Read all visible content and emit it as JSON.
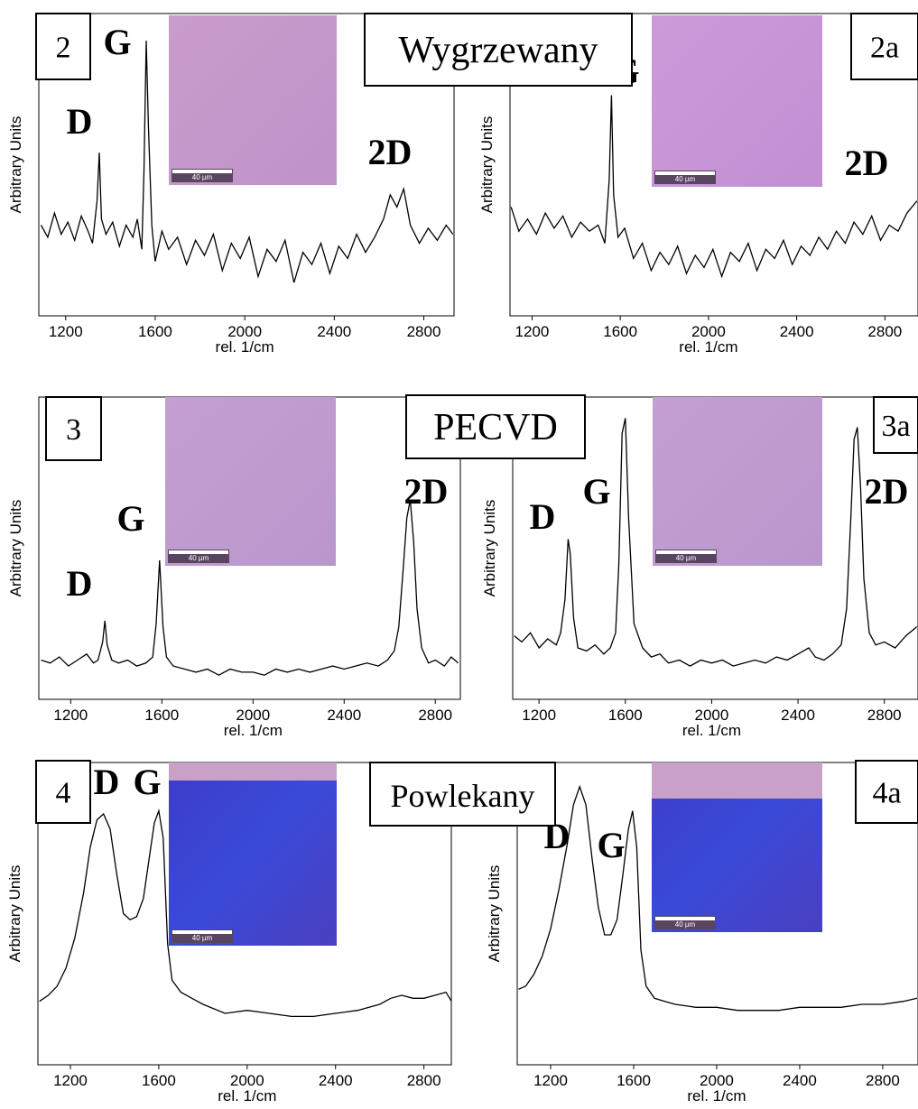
{
  "row_titles": [
    "Wygrzewany",
    "PECVD",
    "Powlekany"
  ],
  "chart_data": [
    {
      "type": "line",
      "panel_label": "2",
      "xlabel": "rel. 1/cm",
      "ylabel": "Arbitrary Units",
      "color": "#000000",
      "xlim": [
        1080,
        2935
      ],
      "ylim": [
        0,
        100
      ],
      "xticks": [
        1200,
        1600,
        2000,
        2400,
        2800
      ],
      "annotations": [
        "D",
        "G",
        "2D"
      ],
      "scale_bar": "40 µm",
      "x": [
        1090,
        1120,
        1150,
        1180,
        1210,
        1240,
        1270,
        1300,
        1320,
        1340,
        1350,
        1360,
        1380,
        1410,
        1440,
        1470,
        1500,
        1520,
        1540,
        1550,
        1560,
        1570,
        1585,
        1600,
        1630,
        1660,
        1700,
        1740,
        1780,
        1820,
        1860,
        1900,
        1940,
        1980,
        2020,
        2060,
        2100,
        2140,
        2180,
        2220,
        2260,
        2300,
        2340,
        2380,
        2420,
        2460,
        2500,
        2540,
        2580,
        2620,
        2650,
        2680,
        2710,
        2740,
        2780,
        2820,
        2860,
        2900,
        2930
      ],
      "values": [
        30,
        26,
        34,
        27,
        31,
        25,
        33,
        28,
        24,
        38,
        54,
        32,
        27,
        31,
        23,
        30,
        26,
        32,
        22,
        48,
        91,
        62,
        30,
        18,
        28,
        22,
        26,
        17,
        25,
        20,
        27,
        15,
        24,
        19,
        26,
        13,
        22,
        18,
        25,
        11,
        21,
        17,
        24,
        14,
        23,
        19,
        27,
        21,
        26,
        32,
        40,
        36,
        42,
        30,
        24,
        29,
        25,
        30,
        27
      ]
    },
    {
      "type": "line",
      "panel_label": "2a",
      "xlabel": "rel. 1/cm",
      "ylabel": "Arbitrary Units",
      "color": "#000000",
      "xlim": [
        1100,
        2950
      ],
      "ylim": [
        0,
        100
      ],
      "xticks": [
        1200,
        1600,
        2000,
        2400,
        2800
      ],
      "annotations": [
        "G",
        "2D"
      ],
      "scale_bar": "40 µm",
      "x": [
        1105,
        1140,
        1180,
        1220,
        1260,
        1300,
        1340,
        1380,
        1420,
        1460,
        1500,
        1530,
        1550,
        1560,
        1570,
        1590,
        1620,
        1660,
        1700,
        1740,
        1780,
        1820,
        1860,
        1900,
        1940,
        1980,
        2020,
        2060,
        2100,
        2140,
        2180,
        2220,
        2260,
        2300,
        2340,
        2380,
        2420,
        2460,
        2500,
        2540,
        2580,
        2620,
        2660,
        2700,
        2740,
        2780,
        2820,
        2860,
        2900,
        2945
      ],
      "values": [
        36,
        28,
        32,
        27,
        34,
        29,
        33,
        26,
        31,
        28,
        30,
        24,
        45,
        73,
        40,
        26,
        29,
        19,
        24,
        15,
        21,
        17,
        23,
        14,
        20,
        16,
        22,
        13,
        21,
        18,
        24,
        15,
        22,
        19,
        25,
        17,
        23,
        20,
        26,
        22,
        28,
        24,
        31,
        27,
        33,
        25,
        30,
        28,
        34,
        38
      ]
    },
    {
      "type": "line",
      "panel_label": "3",
      "xlabel": "rel. 1/cm",
      "ylabel": "Arbitrary Units",
      "color": "#000000",
      "xlim": [
        1060,
        2910
      ],
      "ylim": [
        0,
        100
      ],
      "xticks": [
        1200,
        1600,
        2000,
        2400,
        2800
      ],
      "annotations": [
        "D",
        "G",
        "2D"
      ],
      "scale_bar": "40 µm",
      "x": [
        1070,
        1110,
        1150,
        1190,
        1230,
        1270,
        1300,
        1320,
        1340,
        1350,
        1360,
        1380,
        1410,
        1450,
        1490,
        1530,
        1560,
        1575,
        1590,
        1605,
        1620,
        1650,
        1700,
        1750,
        1800,
        1850,
        1900,
        1950,
        2000,
        2050,
        2100,
        2150,
        2200,
        2250,
        2300,
        2350,
        2400,
        2450,
        2500,
        2550,
        2590,
        2620,
        2640,
        2660,
        2675,
        2690,
        2705,
        2720,
        2740,
        2770,
        2800,
        2840,
        2870,
        2900
      ],
      "values": [
        13,
        12,
        14,
        11,
        13,
        15,
        12,
        13,
        19,
        26,
        18,
        13,
        12,
        13,
        11,
        12,
        14,
        25,
        46,
        24,
        14,
        11,
        10,
        9,
        10,
        8,
        10,
        9,
        9,
        8,
        10,
        9,
        10,
        9,
        10,
        11,
        10,
        11,
        12,
        11,
        13,
        16,
        24,
        44,
        60,
        66,
        52,
        30,
        17,
        12,
        13,
        11,
        14,
        12
      ]
    },
    {
      "type": "line",
      "panel_label": "3a",
      "xlabel": "rel. 1/cm",
      "ylabel": "Arbitrary Units",
      "color": "#000000",
      "xlim": [
        1078,
        2956
      ],
      "ylim": [
        0,
        100
      ],
      "xticks": [
        1200,
        1600,
        2000,
        2400,
        2800
      ],
      "annotations": [
        "D",
        "G",
        "2D"
      ],
      "scale_bar": "40 µm",
      "x": [
        1085,
        1120,
        1160,
        1200,
        1240,
        1280,
        1300,
        1320,
        1335,
        1345,
        1360,
        1380,
        1420,
        1460,
        1500,
        1530,
        1555,
        1570,
        1585,
        1600,
        1615,
        1640,
        1680,
        1720,
        1760,
        1800,
        1850,
        1900,
        1950,
        2000,
        2050,
        2100,
        2150,
        2200,
        2250,
        2300,
        2350,
        2400,
        2450,
        2480,
        2520,
        2560,
        2600,
        2625,
        2645,
        2660,
        2675,
        2690,
        2705,
        2730,
        2760,
        2800,
        2850,
        2900,
        2950
      ],
      "values": [
        21,
        19,
        22,
        17,
        20,
        18,
        22,
        33,
        53,
        48,
        27,
        17,
        16,
        18,
        15,
        17,
        22,
        45,
        88,
        93,
        60,
        25,
        17,
        14,
        15,
        12,
        13,
        11,
        13,
        12,
        13,
        11,
        12,
        13,
        12,
        14,
        13,
        15,
        17,
        14,
        13,
        15,
        18,
        30,
        60,
        86,
        90,
        70,
        40,
        22,
        18,
        19,
        17,
        21,
        24
      ]
    },
    {
      "type": "line",
      "panel_label": "4",
      "xlabel": "rel. 1/cm",
      "ylabel": "Arbitrary Units",
      "color": "#000000",
      "xlim": [
        1053,
        2924
      ],
      "ylim": [
        0,
        100
      ],
      "xticks": [
        1200,
        1600,
        2000,
        2400,
        2800
      ],
      "annotations": [
        "D",
        "G"
      ],
      "scale_bar": "40 µm",
      "x": [
        1060,
        1100,
        1140,
        1180,
        1220,
        1260,
        1290,
        1320,
        1350,
        1380,
        1410,
        1440,
        1470,
        1500,
        1530,
        1560,
        1580,
        1600,
        1620,
        1640,
        1660,
        1700,
        1750,
        1800,
        1900,
        2000,
        2100,
        2200,
        2300,
        2400,
        2500,
        2600,
        2650,
        2700,
        2750,
        2800,
        2850,
        2900,
        2925
      ],
      "values": [
        21,
        23,
        26,
        32,
        42,
        57,
        72,
        81,
        83,
        78,
        63,
        50,
        48,
        49,
        55,
        70,
        80,
        84,
        75,
        40,
        28,
        24,
        22,
        20,
        17,
        18,
        17,
        16,
        16,
        17,
        18,
        20,
        22,
        23,
        22,
        22,
        23,
        24,
        21
      ]
    },
    {
      "type": "line",
      "panel_label": "4a",
      "xlabel": "rel. 1/cm",
      "ylabel": "Arbitrary Units",
      "color": "#000000",
      "xlim": [
        1039,
        2970
      ],
      "ylim": [
        0,
        100
      ],
      "xticks": [
        1200,
        1600,
        2000,
        2400,
        2800
      ],
      "annotations": [
        "D",
        "G"
      ],
      "scale_bar": "40 µm",
      "x": [
        1045,
        1080,
        1120,
        1160,
        1200,
        1240,
        1280,
        1310,
        1340,
        1370,
        1400,
        1430,
        1460,
        1490,
        1520,
        1550,
        1575,
        1595,
        1615,
        1635,
        1660,
        1700,
        1750,
        1800,
        1900,
        2000,
        2100,
        2200,
        2300,
        2400,
        2500,
        2600,
        2700,
        2800,
        2900,
        2965
      ],
      "values": [
        25,
        26,
        30,
        36,
        45,
        58,
        73,
        86,
        92,
        86,
        68,
        52,
        43,
        43,
        48,
        64,
        78,
        84,
        72,
        38,
        26,
        22,
        21,
        20,
        19,
        19,
        18,
        18,
        18,
        19,
        19,
        19,
        20,
        20,
        21,
        22
      ]
    }
  ]
}
